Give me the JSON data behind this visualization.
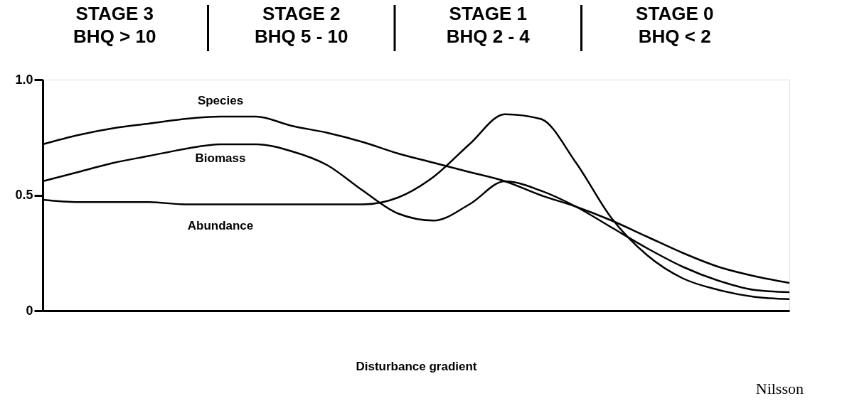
{
  "chart_data": {
    "type": "line",
    "xlabel": "Disturbance gradient",
    "categories": [
      null,
      null,
      null,
      null,
      null,
      null,
      null,
      null,
      null,
      null,
      null,
      null,
      null,
      null,
      null,
      null,
      null,
      null,
      null,
      null,
      null,
      null
    ],
    "series": [
      {
        "name": "Species",
        "color": "#000000",
        "values": [
          0.72,
          0.76,
          0.79,
          0.81,
          0.83,
          0.84,
          0.84,
          0.8,
          0.77,
          0.73,
          0.68,
          0.64,
          0.6,
          0.56,
          0.5,
          0.45,
          0.39,
          0.32,
          0.25,
          0.19,
          0.15,
          0.12
        ]
      },
      {
        "name": "Biomass",
        "color": "#000000",
        "values": [
          0.56,
          0.6,
          0.64,
          0.67,
          0.7,
          0.72,
          0.72,
          0.69,
          0.63,
          0.52,
          0.42,
          0.39,
          0.46,
          0.56,
          0.52,
          0.45,
          0.36,
          0.27,
          0.19,
          0.13,
          0.09,
          0.08
        ]
      },
      {
        "name": "Abundance",
        "color": "#000000",
        "values": [
          0.48,
          0.47,
          0.47,
          0.47,
          0.46,
          0.46,
          0.46,
          0.46,
          0.46,
          0.46,
          0.49,
          0.58,
          0.72,
          0.85,
          0.83,
          0.64,
          0.4,
          0.24,
          0.14,
          0.09,
          0.06,
          0.05
        ]
      }
    ],
    "ylim": [
      0,
      1
    ],
    "yticks": [
      0,
      0.5,
      {
        "value": 1,
        "label": "1.0"
      }
    ],
    "grid": false,
    "legend": false,
    "marker": "none",
    "line_style": "solid",
    "tick_labels": "y",
    "annotations": [
      "STAGE 3\nBHQ > 10",
      "STAGE 2\nBHQ 5 - 10",
      "STAGE 1\nBHQ 2 - 4",
      "STAGE 0\nBHQ < 2",
      "Nilsson"
    ]
  }
}
